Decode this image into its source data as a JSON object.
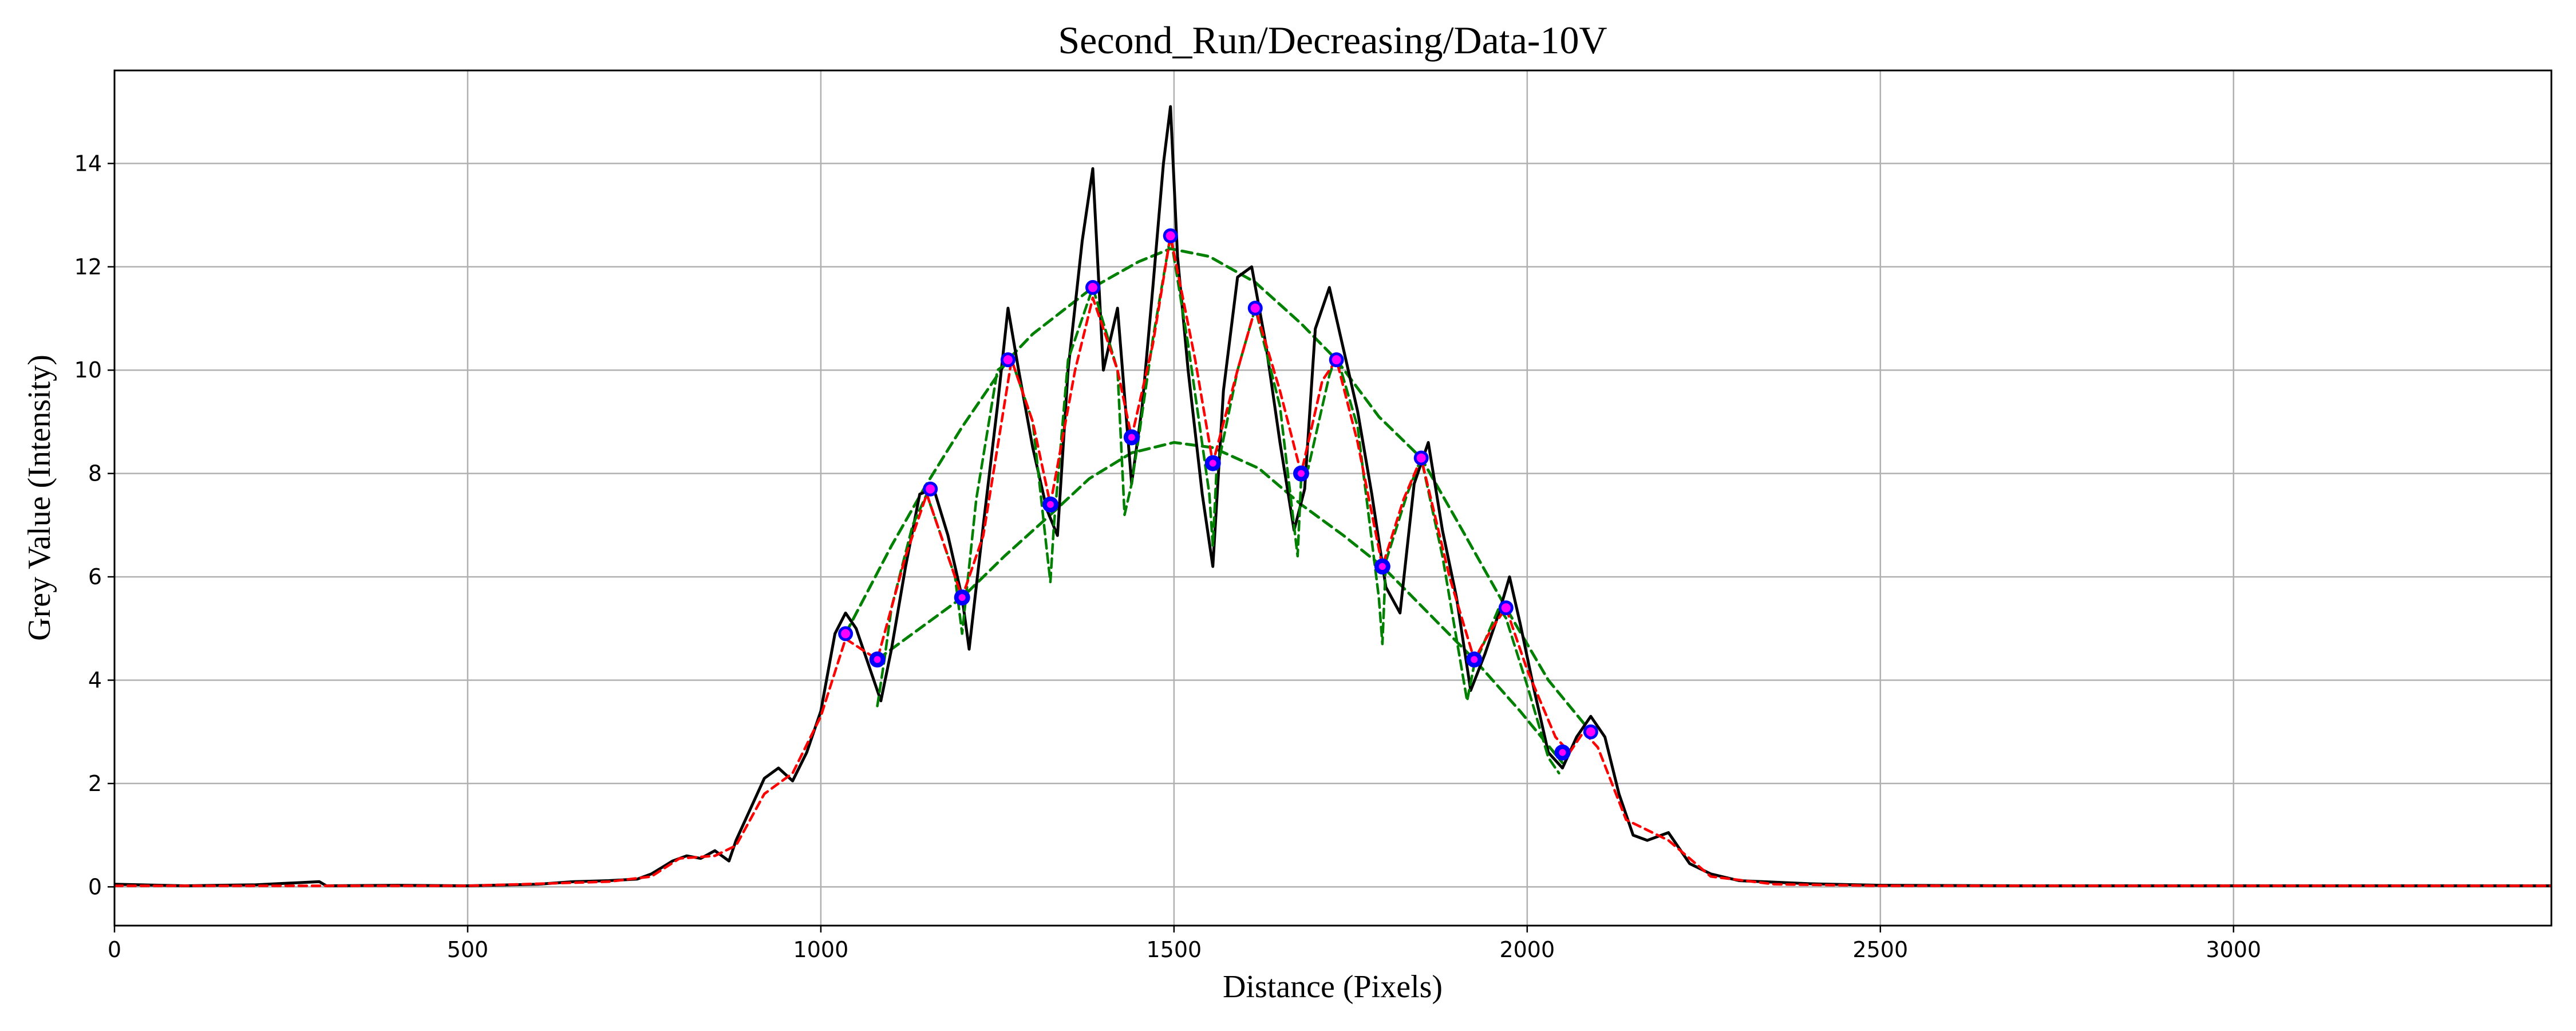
{
  "chart_data": {
    "type": "line",
    "title": "Second_Run/Decreasing/Data-10V",
    "xlabel": "Distance (Pixels)",
    "ylabel": "Grey Value (Intensity)",
    "xlim": [
      0,
      3450
    ],
    "ylim": [
      -0.75,
      15.8
    ],
    "x_ticks": [
      0,
      500,
      1000,
      1500,
      2000,
      2500,
      3000
    ],
    "y_ticks": [
      0,
      2,
      4,
      6,
      8,
      10,
      12,
      14
    ],
    "grid": true,
    "legend": "none",
    "colors": {
      "raw": "#000000",
      "smoothed": "#ff0000",
      "envelope": "#008000",
      "peaks": "#ff00ff",
      "minima": "#0000ff"
    },
    "series": [
      {
        "style": "solid-black",
        "x": [
          0,
          100,
          200,
          290,
          300,
          400,
          500,
          600,
          650,
          700,
          740,
          760,
          790,
          810,
          830,
          850,
          870,
          880,
          900,
          920,
          940,
          960,
          980,
          1000,
          1020,
          1035,
          1050,
          1070,
          1085,
          1100,
          1120,
          1140,
          1160,
          1180,
          1200,
          1210,
          1230,
          1250,
          1265,
          1280,
          1300,
          1320,
          1335,
          1350,
          1370,
          1385,
          1400,
          1420,
          1440,
          1455,
          1470,
          1485,
          1495,
          1505,
          1520,
          1540,
          1555,
          1570,
          1590,
          1610,
          1630,
          1650,
          1670,
          1685,
          1700,
          1720,
          1740,
          1760,
          1780,
          1800,
          1820,
          1840,
          1860,
          1880,
          1900,
          1920,
          1940,
          1960,
          1975,
          1990,
          2010,
          2030,
          2050,
          2070,
          2090,
          2110,
          2130,
          2150,
          2170,
          2200,
          2230,
          2260,
          2300,
          2400,
          2500,
          2700,
          3000,
          3450
        ],
        "y": [
          0.05,
          0.02,
          0.04,
          0.1,
          0.02,
          0.03,
          0.02,
          0.05,
          0.1,
          0.12,
          0.15,
          0.25,
          0.5,
          0.6,
          0.55,
          0.7,
          0.5,
          0.9,
          1.5,
          2.1,
          2.3,
          2.05,
          2.6,
          3.4,
          4.9,
          5.3,
          5.0,
          4.2,
          3.6,
          4.6,
          6.2,
          7.6,
          7.7,
          6.8,
          5.6,
          4.6,
          7.0,
          9.3,
          11.2,
          10.0,
          8.5,
          7.3,
          6.8,
          10.0,
          12.5,
          13.9,
          10.0,
          11.2,
          7.8,
          9.3,
          11.6,
          14.0,
          15.1,
          12.2,
          10.0,
          7.6,
          6.2,
          9.6,
          11.8,
          12.0,
          10.5,
          8.6,
          6.9,
          7.7,
          10.8,
          11.6,
          10.4,
          9.2,
          7.6,
          5.8,
          5.3,
          7.8,
          8.6,
          6.9,
          5.6,
          3.8,
          4.5,
          5.3,
          6.0,
          5.1,
          3.8,
          2.6,
          2.3,
          2.9,
          3.3,
          2.9,
          1.8,
          1.0,
          0.9,
          1.05,
          0.45,
          0.25,
          0.12,
          0.06,
          0.03,
          0.02,
          0.02,
          0.02
        ]
      },
      {
        "style": "dashed-red",
        "x": [
          0,
          500,
          700,
          760,
          800,
          850,
          880,
          920,
          960,
          1000,
          1035,
          1080,
          1120,
          1150,
          1200,
          1230,
          1270,
          1300,
          1325,
          1360,
          1385,
          1420,
          1440,
          1470,
          1495,
          1530,
          1555,
          1590,
          1615,
          1650,
          1680,
          1710,
          1730,
          1760,
          1795,
          1825,
          1850,
          1890,
          1925,
          1950,
          1970,
          2000,
          2040,
          2060,
          2080,
          2100,
          2140,
          2200,
          2260,
          2350,
          2500,
          3450
        ],
        "y": [
          0.02,
          0.02,
          0.1,
          0.2,
          0.55,
          0.6,
          0.8,
          1.8,
          2.2,
          3.3,
          4.8,
          4.4,
          6.4,
          7.6,
          5.6,
          6.8,
          10.2,
          9.0,
          7.4,
          10.0,
          11.4,
          10.0,
          8.7,
          10.5,
          12.6,
          10.2,
          8.2,
          10.0,
          11.2,
          9.6,
          8.0,
          9.8,
          10.2,
          8.6,
          6.2,
          7.5,
          8.3,
          6.0,
          4.4,
          5.0,
          5.4,
          4.2,
          2.9,
          2.6,
          3.0,
          2.7,
          1.3,
          0.9,
          0.2,
          0.05,
          0.02,
          0.02
        ]
      },
      {
        "style": "dashed-green-upper-envelope",
        "x": [
          1035,
          1100,
          1150,
          1200,
          1265,
          1300,
          1385,
          1450,
          1495,
          1550,
          1615,
          1680,
          1730,
          1790,
          1850,
          1900,
          1970,
          2030,
          2090
        ],
        "y": [
          4.9,
          6.6,
          7.8,
          8.9,
          10.2,
          10.7,
          11.6,
          12.1,
          12.35,
          12.2,
          11.7,
          10.9,
          10.2,
          9.1,
          8.3,
          7.1,
          5.4,
          4.0,
          3.0
        ]
      },
      {
        "style": "dashed-green-lower-envelope",
        "x": [
          1080,
          1150,
          1200,
          1260,
          1325,
          1380,
          1440,
          1500,
          1555,
          1620,
          1680,
          1740,
          1795,
          1860,
          1925,
          1990,
          2050
        ],
        "y": [
          4.4,
          5.1,
          5.6,
          6.4,
          7.2,
          7.9,
          8.4,
          8.6,
          8.5,
          8.1,
          7.4,
          6.8,
          6.2,
          5.3,
          4.4,
          3.4,
          2.4
        ]
      },
      {
        "style": "dashed-green-detail",
        "x": [
          1080,
          1090,
          1100,
          1130,
          1150,
          1190,
          1200,
          1220,
          1250,
          1270,
          1300,
          1320,
          1325,
          1330,
          1350,
          1385,
          1420,
          1430,
          1440,
          1450,
          1470,
          1495,
          1520,
          1550,
          1555,
          1560,
          1590,
          1615,
          1650,
          1675,
          1680,
          1690,
          1720,
          1730,
          1760,
          1790,
          1795,
          1800,
          1830,
          1850,
          1880,
          1915,
          1925,
          1935,
          1960,
          1970,
          2000,
          2030,
          2045
        ],
        "y": [
          3.5,
          4.4,
          5.4,
          7.0,
          7.6,
          6.0,
          4.9,
          7.5,
          10.0,
          10.2,
          9.0,
          6.5,
          5.9,
          7.0,
          10.2,
          11.6,
          10.0,
          7.2,
          7.8,
          8.7,
          10.6,
          12.6,
          10.5,
          7.6,
          6.6,
          8.0,
          10.0,
          11.2,
          9.3,
          6.4,
          7.9,
          8.1,
          9.9,
          10.3,
          8.9,
          5.6,
          4.7,
          6.3,
          7.6,
          8.3,
          6.4,
          3.6,
          4.3,
          4.6,
          5.4,
          5.2,
          3.9,
          2.5,
          2.2
        ]
      }
    ],
    "peaks": {
      "x": [
        1035,
        1155,
        1265,
        1385,
        1495,
        1615,
        1730,
        1850,
        1970,
        2090
      ],
      "y": [
        4.9,
        7.7,
        10.2,
        11.6,
        12.6,
        11.2,
        10.2,
        8.3,
        5.4,
        3.0
      ]
    },
    "minima": {
      "x": [
        1080,
        1200,
        1325,
        1440,
        1555,
        1680,
        1795,
        1925,
        2050
      ],
      "y": [
        4.4,
        5.6,
        7.4,
        8.7,
        8.2,
        8.0,
        6.2,
        4.4,
        2.6
      ]
    }
  }
}
